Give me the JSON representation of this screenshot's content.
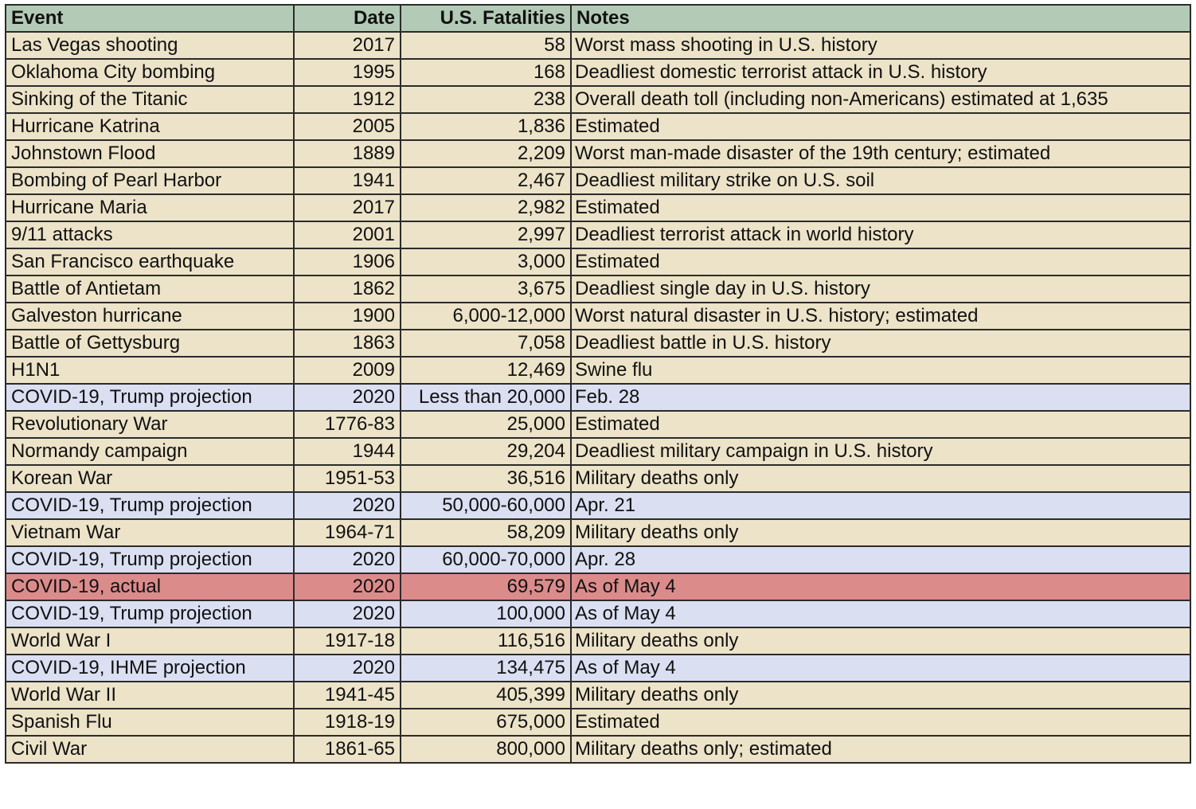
{
  "colors": {
    "header": "#b3cbb6",
    "event": "#ece3c8",
    "projection": "#dadff2",
    "actual": "#dc8b8b"
  },
  "table": {
    "columns": [
      "Event",
      "Date",
      "U.S. Fatalities",
      "Notes"
    ],
    "rows": [
      {
        "event": "Las Vegas shooting",
        "date": "2017",
        "fatalities": "58",
        "notes": "Worst mass shooting in U.S. history",
        "kind": "event"
      },
      {
        "event": "Oklahoma City bombing",
        "date": "1995",
        "fatalities": "168",
        "notes": "Deadliest domestic terrorist attack in U.S. history",
        "kind": "event"
      },
      {
        "event": "Sinking of the Titanic",
        "date": "1912",
        "fatalities": "238",
        "notes": "Overall death toll (including non-Americans) estimated at 1,635",
        "kind": "event"
      },
      {
        "event": "Hurricane Katrina",
        "date": "2005",
        "fatalities": "1,836",
        "notes": "Estimated",
        "kind": "event"
      },
      {
        "event": "Johnstown Flood",
        "date": "1889",
        "fatalities": "2,209",
        "notes": "Worst man-made disaster of the 19th century; estimated",
        "kind": "event"
      },
      {
        "event": "Bombing of Pearl Harbor",
        "date": "1941",
        "fatalities": "2,467",
        "notes": "Deadliest military strike on U.S. soil",
        "kind": "event"
      },
      {
        "event": "Hurricane Maria",
        "date": "2017",
        "fatalities": "2,982",
        "notes": "Estimated",
        "kind": "event"
      },
      {
        "event": "9/11 attacks",
        "date": "2001",
        "fatalities": "2,997",
        "notes": "Deadliest terrorist attack in world history",
        "kind": "event"
      },
      {
        "event": "San Francisco earthquake",
        "date": "1906",
        "fatalities": "3,000",
        "notes": "Estimated",
        "kind": "event"
      },
      {
        "event": "Battle of Antietam",
        "date": "1862",
        "fatalities": "3,675",
        "notes": "Deadliest single day in U.S. history",
        "kind": "event"
      },
      {
        "event": "Galveston hurricane",
        "date": "1900",
        "fatalities": "6,000-12,000",
        "notes": "Worst natural disaster in U.S. history; estimated",
        "kind": "event"
      },
      {
        "event": "Battle of Gettysburg",
        "date": "1863",
        "fatalities": "7,058",
        "notes": "Deadliest battle in U.S. history",
        "kind": "event"
      },
      {
        "event": "H1N1",
        "date": "2009",
        "fatalities": "12,469",
        "notes": "Swine flu",
        "kind": "event"
      },
      {
        "event": "COVID-19, Trump projection",
        "date": "2020",
        "fatalities": "Less than 20,000",
        "notes": "Feb. 28",
        "kind": "projection"
      },
      {
        "event": "Revolutionary War",
        "date": "1776-83",
        "fatalities": "25,000",
        "notes": "Estimated",
        "kind": "event"
      },
      {
        "event": "Normandy campaign",
        "date": "1944",
        "fatalities": "29,204",
        "notes": "Deadliest military campaign in U.S. history",
        "kind": "event"
      },
      {
        "event": "Korean War",
        "date": "1951-53",
        "fatalities": "36,516",
        "notes": "Military deaths only",
        "kind": "event"
      },
      {
        "event": "COVID-19, Trump projection",
        "date": "2020",
        "fatalities": "50,000-60,000",
        "notes": "Apr. 21",
        "kind": "projection"
      },
      {
        "event": "Vietnam War",
        "date": "1964-71",
        "fatalities": "58,209",
        "notes": "Military deaths only",
        "kind": "event"
      },
      {
        "event": "COVID-19, Trump projection",
        "date": "2020",
        "fatalities": "60,000-70,000",
        "notes": "Apr. 28",
        "kind": "projection"
      },
      {
        "event": "COVID-19, actual",
        "date": "2020",
        "fatalities": "69,579",
        "notes": "As of May 4",
        "kind": "actual"
      },
      {
        "event": "COVID-19, Trump projection",
        "date": "2020",
        "fatalities": "100,000",
        "notes": "As of May 4",
        "kind": "projection"
      },
      {
        "event": "World War I",
        "date": "1917-18",
        "fatalities": "116,516",
        "notes": "Military deaths only",
        "kind": "event"
      },
      {
        "event": "COVID-19, IHME projection",
        "date": "2020",
        "fatalities": "134,475",
        "notes": "As of May 4",
        "kind": "projection"
      },
      {
        "event": "World War II",
        "date": "1941-45",
        "fatalities": "405,399",
        "notes": "Military deaths only",
        "kind": "event"
      },
      {
        "event": "Spanish Flu",
        "date": "1918-19",
        "fatalities": "675,000",
        "notes": "Estimated",
        "kind": "event"
      },
      {
        "event": "Civil War",
        "date": "1861-65",
        "fatalities": "800,000",
        "notes": "Military deaths only; estimated",
        "kind": "event"
      }
    ]
  }
}
